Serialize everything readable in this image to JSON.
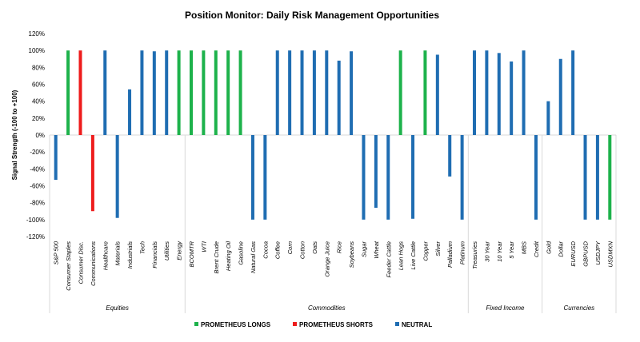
{
  "chart_data": {
    "type": "bar",
    "title": "Position Monitor: Daily Risk Management Opportunities",
    "xlabel": "",
    "ylabel": "Signal Strength (-100 to +100)",
    "ylim": [
      -120,
      120
    ],
    "yticks": [
      "-120%",
      "-100%",
      "-80%",
      "-60%",
      "-40%",
      "-20%",
      "0%",
      "20%",
      "40%",
      "60%",
      "80%",
      "100%",
      "120%"
    ],
    "yticks_values": [
      -120,
      -100,
      -80,
      -60,
      -40,
      -20,
      0,
      20,
      40,
      60,
      80,
      100,
      120
    ],
    "grid": false,
    "legend_position": "bottom",
    "colors": {
      "longs": "#1db24b",
      "shorts": "#ee1c1c",
      "neutral": "#1f6db2",
      "axis": "#d9d9d9"
    },
    "legend": [
      {
        "key": "longs",
        "label": "PROMETHEUS LONGS"
      },
      {
        "key": "shorts",
        "label": "PROMETHEUS SHORTS"
      },
      {
        "key": "neutral",
        "label": "NEUTRAL"
      }
    ],
    "groups": [
      {
        "name": "Equities",
        "count": 11
      },
      {
        "name": "Commodities",
        "count": 23
      },
      {
        "name": "Fixed Income",
        "count": 6
      },
      {
        "name": "Currencies",
        "count": 6
      }
    ],
    "categories": [
      "S&P 500",
      "Consumer Staples",
      "Consumer Disc.",
      "Communications",
      "Healthcare",
      "Materials",
      "Industrials",
      "Tech",
      "Financials",
      "Utilities",
      "Energy",
      "BCOMTR",
      "WTI",
      "Brent Crude",
      "Heating Oil",
      "Gasoline",
      "Natural Gas",
      "Cocoa",
      "Coffee",
      "Corn",
      "Cotton",
      "Oats",
      "Orange Juice",
      "Rice",
      "Soybeans",
      "Sugar",
      "Wheat",
      "Feeder Cattle",
      "Lean Hogs",
      "Live Cattle",
      "Copper",
      "Silver",
      "Palladium",
      "Platinum",
      "Treasuries",
      "30 Year",
      "10 Year",
      "5 Year",
      "MBS",
      "Credit",
      "Gold",
      "Dollar",
      "EURUSD",
      "GBPUSD",
      "USDJPY",
      "USDMXN"
    ],
    "series": [
      {
        "key": "longs",
        "name": "PROMETHEUS LONGS",
        "values": [
          null,
          100,
          null,
          null,
          null,
          null,
          null,
          null,
          null,
          null,
          100,
          100,
          100,
          100,
          100,
          100,
          null,
          null,
          null,
          null,
          null,
          null,
          null,
          null,
          null,
          null,
          null,
          null,
          100,
          null,
          100,
          null,
          null,
          null,
          null,
          null,
          null,
          null,
          null,
          null,
          null,
          null,
          null,
          null,
          null,
          -100
        ]
      },
      {
        "key": "shorts",
        "name": "PROMETHEUS SHORTS",
        "values": [
          null,
          null,
          100,
          -90,
          null,
          null,
          null,
          null,
          null,
          null,
          null,
          null,
          null,
          null,
          null,
          null,
          null,
          null,
          null,
          null,
          null,
          null,
          null,
          null,
          null,
          null,
          null,
          null,
          null,
          null,
          null,
          null,
          null,
          null,
          null,
          null,
          null,
          null,
          null,
          null,
          null,
          null,
          null,
          null,
          null,
          null
        ]
      },
      {
        "key": "neutral",
        "name": "NEUTRAL",
        "values": [
          -53,
          null,
          null,
          null,
          100,
          -98,
          54,
          100,
          99,
          100,
          null,
          null,
          null,
          null,
          null,
          null,
          -100,
          -100,
          100,
          100,
          100,
          100,
          100,
          88,
          99,
          -100,
          -86,
          -100,
          null,
          -99,
          null,
          95,
          -49,
          -100,
          100,
          100,
          97,
          87,
          100,
          -100,
          40,
          90,
          100,
          -100,
          -100,
          null
        ]
      }
    ]
  }
}
